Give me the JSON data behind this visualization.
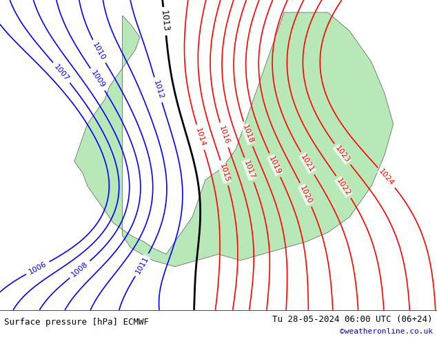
{
  "title_left": "Surface pressure [hPa] ECMWF",
  "title_right": "Tu 28-05-2024 06:00 UTC (06+24)",
  "copyright": "©weatheronline.co.uk",
  "background_color": "#d8d8d8",
  "land_color": "#b8e8b8",
  "sea_color": "#d8d8d8",
  "footer_bg": "#ffffff",
  "black_isobar_values": [
    1013
  ],
  "blue_isobar_values": [
    1006,
    1007,
    1008,
    1009,
    1010,
    1011,
    1012
  ],
  "red_isobar_values": [
    1014,
    1015,
    1016,
    1017,
    1018,
    1019,
    1020,
    1021,
    1022,
    1023,
    1024
  ],
  "contour_linewidth_black": 2.0,
  "contour_linewidth_color": 1.2,
  "label_fontsize": 8,
  "footer_fontsize": 9,
  "copyright_color": "#0000cc",
  "footer_text_color": "#000000"
}
